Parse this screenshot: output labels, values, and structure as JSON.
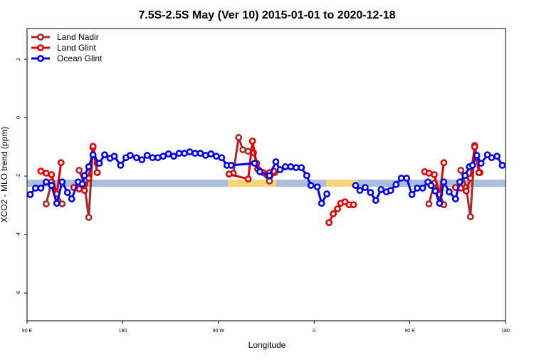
{
  "chart_data": {
    "type": "line",
    "title": "7.5S-2.5S May (Ver 10)   2015-01-01 to 2020-12-18",
    "x_label": "Longitude",
    "y_label": "XCO2 - MLO trend (ppm)",
    "xlim": [
      90,
      540
    ],
    "ylim": [
      -6.95,
      3.05
    ],
    "xticks": [
      {
        "value": 90,
        "label": "90 E"
      },
      180,
      {
        "value": 270,
        "label": "90 W"
      },
      {
        "value": 360,
        "label": "0"
      },
      {
        "value": 450,
        "label": "90 E"
      },
      {
        "value": 540,
        "label": "180"
      }
    ],
    "yticks": [
      -6,
      -4,
      -2,
      0,
      2
    ],
    "legend": "top-left",
    "grid": false,
    "series": [
      {
        "name": "Land Nadir",
        "color": "#a52a2a",
        "x": [
          108,
          113,
          118,
          123,
          null,
          139,
          144,
          148,
          152,
          156,
          null,
          284,
          289,
          293,
          298,
          303,
          306,
          309,
          318,
          323,
          null,
          468,
          473,
          478,
          482,
          null,
          498,
          503,
          507,
          511,
          516
        ],
        "values": [
          -2.95,
          -2.2,
          -2.6,
          -2.95,
          null,
          -1.8,
          -2.3,
          -3.41,
          -1.02,
          -1.56,
          null,
          -1.9,
          -0.68,
          -1.1,
          -1.15,
          -1.2,
          -1.56,
          -1.83,
          -2.17,
          -1.88,
          null,
          -2.95,
          -2.24,
          -2.6,
          -2.98,
          null,
          -1.8,
          -2.39,
          -3.39,
          -0.95,
          -1.88
        ]
      },
      {
        "name": "Land Glint",
        "color": "#e00000",
        "x": [
          103,
          108,
          113,
          118,
          122,
          null,
          134,
          139,
          144,
          148,
          152,
          156,
          null,
          280,
          298,
          302,
          307,
          312,
          318,
          322,
          null,
          374,
          378,
          382,
          385,
          389,
          393,
          397,
          null,
          464,
          468,
          473,
          478,
          482,
          null,
          493,
          498,
          503,
          507,
          511,
          515
        ],
        "values": [
          -1.83,
          -1.9,
          -1.95,
          -2.61,
          -1.54,
          null,
          -2.39,
          -2.44,
          -2.49,
          -2.07,
          -0.98,
          -1.88,
          null,
          -1.93,
          -2.1,
          -0.8,
          -1.76,
          -1.88,
          -1.88,
          -1.83,
          null,
          -3.59,
          -3.29,
          -3.12,
          -2.93,
          -2.88,
          -2.98,
          -2.98,
          null,
          -1.85,
          -1.9,
          -1.95,
          -2.63,
          -1.54,
          null,
          -2.39,
          -2.41,
          -2.51,
          -2.07,
          -1.0,
          -1.88
        ]
      },
      {
        "name": "Ocean Glint",
        "color": "#0000ee",
        "x": [
          93,
          98,
          103,
          108,
          113,
          118,
          123,
          128,
          132,
          138,
          142,
          144,
          148,
          152,
          158,
          163,
          168,
          172,
          178,
          183,
          187,
          193,
          198,
          203,
          208,
          213,
          218,
          223,
          228,
          233,
          238,
          243,
          248,
          253,
          258,
          263,
          268,
          273,
          278,
          282,
          304,
          309,
          318,
          324,
          328,
          333,
          338,
          343,
          348,
          353,
          357,
          363,
          367,
          372,
          null,
          399,
          403,
          408,
          413,
          418,
          423,
          428,
          432,
          437,
          442,
          447,
          452,
          457,
          462,
          467,
          470,
          474,
          478,
          482,
          487,
          493,
          497,
          502,
          506,
          509,
          513,
          517,
          523,
          527,
          532,
          537
        ],
        "values": [
          -2.63,
          -2.41,
          -2.41,
          -2.2,
          -2.32,
          -2.93,
          -2.2,
          -2.56,
          -2.78,
          -2.2,
          -2.27,
          -1.98,
          -1.68,
          -1.27,
          -1.56,
          -1.27,
          -1.39,
          -1.32,
          -1.63,
          -1.37,
          -1.29,
          -1.37,
          -1.44,
          -1.29,
          -1.37,
          -1.37,
          -1.32,
          -1.24,
          -1.32,
          -1.22,
          -1.22,
          -1.17,
          -1.22,
          -1.22,
          -1.29,
          -1.24,
          -1.32,
          -1.37,
          -1.63,
          -1.63,
          -1.56,
          -1.85,
          -1.98,
          -1.51,
          -1.78,
          -1.68,
          -1.68,
          -1.71,
          -1.71,
          -1.98,
          -2.32,
          -2.37,
          -2.93,
          -2.61,
          null,
          -2.32,
          -2.49,
          -2.39,
          -2.56,
          -2.83,
          -2.46,
          -2.54,
          -2.49,
          -2.29,
          -2.07,
          -2.07,
          -2.63,
          -2.41,
          -2.41,
          -2.2,
          -2.32,
          -2.51,
          -2.93,
          -2.2,
          -2.54,
          -2.78,
          -2.2,
          -1.98,
          -1.68,
          -1.63,
          -1.29,
          -1.56,
          -1.27,
          -1.37,
          -1.32,
          -1.63
        ]
      }
    ]
  }
}
